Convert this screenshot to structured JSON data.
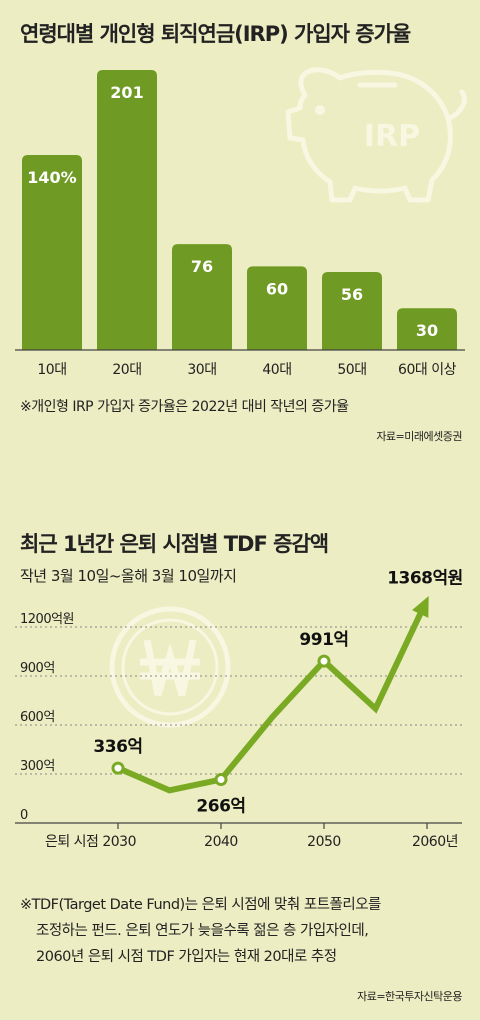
{
  "chart1": {
    "title": "연령대별 개인형 퇴직연금(IRP) 가입자 증가율",
    "icon_label": "IRP",
    "icon": "piggy-bank-icon",
    "note": "※개인형 IRP 가입자 증가율은 2022년 대비 작년의 증가율",
    "source": "자료=미래에셋증권"
  },
  "chart2": {
    "title": "최근 1년간 은퇴 시점별 TDF 증감액",
    "subtitle": "작년 3월 10일~올해 3월 10일까지",
    "icon": "won-coin-icon",
    "note_line1": "※TDF(Target Date Fund)는 은퇴 시점에 맞춰 포트폴리오를",
    "note_line2": "조정하는 펀드. 은퇴 연도가 늦을수록 젊은 층 가입자인데,",
    "note_line3": "2060년 은퇴 시점 TDF 가입자는 현재 20대로 추정",
    "source": "자료=한국투자신탁운용"
  },
  "colors": {
    "background": "#ecedc2",
    "bar": "#6f9a23",
    "line": "#7aaa24",
    "icon": "#f7f7e2"
  },
  "chart_data": [
    {
      "type": "bar",
      "title": "연령대별 개인형 퇴직연금(IRP) 가입자 증가율",
      "categories": [
        "10대",
        "20대",
        "30대",
        "40대",
        "50대",
        "60대 이상"
      ],
      "values": [
        140,
        201,
        76,
        60,
        56,
        30
      ],
      "labels": [
        "140%",
        "201",
        "76",
        "60",
        "56",
        "30"
      ],
      "unit": "%",
      "ylim": [
        0,
        210
      ],
      "grid": false
    },
    {
      "type": "line",
      "title": "최근 1년간 은퇴 시점별 TDF 증감액",
      "x": [
        2030,
        2035,
        2040,
        2045,
        2050,
        2055,
        2060
      ],
      "y": [
        336,
        200,
        266,
        650,
        991,
        700,
        1368
      ],
      "unit": "억원",
      "ylim": [
        0,
        1400
      ],
      "yticks": [
        0,
        300,
        600,
        900,
        1200
      ],
      "ytick_labels": [
        "0",
        "300억",
        "600억",
        "900억",
        "1200억원"
      ],
      "xticks": [
        2030,
        2040,
        2050,
        2060
      ],
      "xtick_labels": [
        "은퇴 시점 2030",
        "2040",
        "2050",
        "2060년"
      ],
      "point_labels": [
        {
          "x": 2030,
          "y": 336,
          "text": "336억",
          "pos": "above"
        },
        {
          "x": 2040,
          "y": 266,
          "text": "266억",
          "pos": "below"
        },
        {
          "x": 2050,
          "y": 991,
          "text": "991억",
          "pos": "above"
        },
        {
          "x": 2060,
          "y": 1368,
          "text": "1368억원",
          "pos": "above"
        }
      ],
      "markers_at": [
        2030,
        2040,
        2050
      ],
      "grid": "horizontal dashed",
      "arrow_end": true
    }
  ]
}
